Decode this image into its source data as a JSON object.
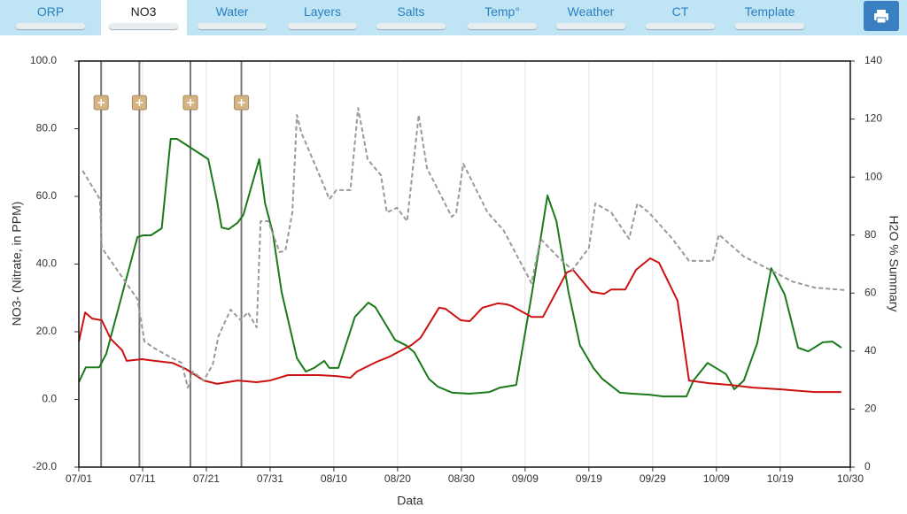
{
  "tabs": [
    "ORP",
    "NO3",
    "Water",
    "Layers",
    "Salts",
    "Temp°",
    "Weather",
    "CT",
    "Template"
  ],
  "active_tab": "NO3",
  "chart_data": {
    "type": "line",
    "x_label": "Data",
    "y_label": "NO3- (Nitrate, in PPM)",
    "y2_label": "H2O % Summary",
    "xlim": [
      0,
      121
    ],
    "xticks": [
      {
        "value": 0,
        "label": "07/01"
      },
      {
        "value": 10,
        "label": "07/11"
      },
      {
        "value": 20,
        "label": "07/21"
      },
      {
        "value": 30,
        "label": "07/31"
      },
      {
        "value": 40,
        "label": "08/10"
      },
      {
        "value": 50,
        "label": "08/20"
      },
      {
        "value": 60,
        "label": "08/30"
      },
      {
        "value": 70,
        "label": "09/09"
      },
      {
        "value": 80,
        "label": "09/19"
      },
      {
        "value": 90,
        "label": "09/29"
      },
      {
        "value": 100,
        "label": "10/09"
      },
      {
        "value": 110,
        "label": "10/19"
      },
      {
        "value": 121,
        "label": "10/30"
      }
    ],
    "ylim": [
      -20,
      100
    ],
    "yticks": [
      {
        "value": -20,
        "label": "-20.0"
      },
      {
        "value": 0,
        "label": "0.0"
      },
      {
        "value": 20,
        "label": "20.0"
      },
      {
        "value": 40,
        "label": "40.0"
      },
      {
        "value": 60,
        "label": "60.0"
      },
      {
        "value": 80,
        "label": "80.0"
      },
      {
        "value": 100,
        "label": "100.0"
      }
    ],
    "y2lim": [
      0,
      140
    ],
    "y2ticks": [
      0,
      20,
      40,
      60,
      80,
      100,
      120,
      140
    ],
    "grid": "x",
    "events": [
      3.5,
      9.5,
      17.5,
      25.5
    ],
    "series": [
      {
        "color": "#1a7a1a",
        "dash": false,
        "x": [
          0,
          1.1,
          3.2,
          4.3,
          9.2,
          10.1,
          11.3,
          13,
          14.4,
          15.4,
          20.3,
          21.7,
          22.4,
          23.5,
          24.9,
          25.8,
          28.3,
          29.2,
          30.4,
          31.8,
          34.2,
          35.6,
          36.9,
          38.5,
          39.3,
          40.7,
          43.3,
          45.4,
          46.5,
          49.6,
          51.3,
          52.6,
          54.9,
          56.3,
          57.9,
          58.6,
          61.3,
          64.4,
          66.1,
          68.6,
          71.1,
          73.5,
          74.9,
          76.8,
          78.6,
          80.7,
          82.1,
          84.9,
          86.8,
          89.4,
          91.7,
          95.3,
          96.4,
          98.6,
          101.5,
          102.8,
          104.3,
          106.4,
          108.6,
          110.7,
          112.8,
          114.4,
          116.7,
          118.2,
          119.6
        ],
        "values": [
          5.1,
          9.5,
          9.5,
          13.5,
          48,
          48.5,
          48.5,
          50.6,
          77,
          77,
          71,
          58.4,
          50.8,
          50.3,
          52.2,
          54.5,
          71,
          58,
          49.5,
          31.8,
          12.2,
          8.2,
          9.3,
          11.4,
          9.3,
          9.3,
          24.4,
          28.6,
          27.3,
          17.6,
          16,
          14,
          6.1,
          3.8,
          2.5,
          2,
          1.7,
          2.2,
          3.5,
          4.3,
          31.8,
          60.3,
          52.7,
          31.8,
          16,
          9.3,
          6.1,
          2,
          1.7,
          1.4,
          0.9,
          0.9,
          5.6,
          10.8,
          7.5,
          3,
          5.6,
          16.6,
          38.8,
          31,
          15.3,
          14.2,
          16.9,
          17.1,
          15.3
        ]
      },
      {
        "color": "#cc1111",
        "dash": false,
        "x": [
          0,
          1,
          2.1,
          3.6,
          5,
          6.8,
          7.5,
          9.9,
          11.9,
          14.7,
          16.8,
          19.6,
          21.7,
          24.9,
          27.9,
          30,
          32.8,
          37.6,
          40.4,
          42.6,
          43.6,
          46.7,
          48.8,
          52.2,
          53.6,
          56.5,
          57.5,
          59.9,
          61.3,
          63.3,
          65.7,
          67.1,
          67.9,
          71,
          72.8,
          76.5,
          77.5,
          80.4,
          82.4,
          83.5,
          85.7,
          87.4,
          89.6,
          91,
          93.9,
          95.7,
          98.8,
          102.2,
          105.7,
          109.9,
          115.4,
          119.6
        ],
        "values": [
          17.1,
          25.7,
          23.9,
          23.4,
          17.9,
          14.5,
          11.4,
          11.9,
          11.4,
          10.8,
          9,
          5.6,
          4.6,
          5.6,
          5.1,
          5.6,
          7.2,
          7.2,
          6.9,
          6.4,
          8.2,
          11.1,
          12.7,
          16.1,
          18.2,
          27.1,
          26.8,
          23.4,
          23.1,
          27.1,
          28.4,
          28.1,
          27.6,
          24.4,
          24.4,
          37.5,
          38.3,
          31.8,
          31.2,
          32.5,
          32.5,
          38.3,
          41.7,
          40.4,
          29.2,
          5.6,
          4.8,
          4.3,
          3.5,
          3,
          2.2,
          2.2
        ]
      },
      {
        "color": "#999999",
        "dash": true,
        "axis": "y2",
        "x": [
          0.6,
          3.3,
          3.6,
          9.2,
          10.3,
          11.9,
          14.7,
          16.1,
          17.1,
          17.9,
          19.6,
          21,
          21.9,
          23.8,
          25.4,
          26.5,
          27.9,
          28.5,
          29.7,
          31.5,
          32.4,
          33.5,
          34.2,
          34.9,
          37,
          39.3,
          40.4,
          42.6,
          43.8,
          45.3,
          47.4,
          48.3,
          49.9,
          51.5,
          53.3,
          54.6,
          58.5,
          59.2,
          60.3,
          64.1,
          66.6,
          71,
          72.4,
          75.1,
          77.4,
          80,
          81,
          83.5,
          86.3,
          87.6,
          89.4,
          93.1,
          95.7,
          99.4,
          100.4,
          104.3,
          107.1,
          109.2,
          111.9,
          115.4,
          120.3
        ],
        "values": [
          102.2,
          92.4,
          75.6,
          57.9,
          43.3,
          40.9,
          37.5,
          36,
          27.4,
          32.9,
          29.9,
          35.4,
          45.1,
          54.3,
          50.6,
          53.4,
          48.2,
          84.8,
          84.8,
          74.1,
          74.7,
          87.8,
          121.4,
          115.3,
          104.6,
          92.4,
          95.5,
          95.5,
          123.8,
          106.1,
          100.6,
          87.8,
          89.4,
          84.8,
          121.4,
          103.1,
          86.3,
          87.8,
          104.6,
          87.8,
          81.7,
          63.4,
          78.7,
          72.6,
          68,
          75.6,
          90.9,
          87.8,
          78.7,
          90.9,
          87.8,
          78.7,
          71.1,
          71.1,
          80.2,
          72.6,
          69.5,
          67.1,
          64,
          61.9,
          61
        ]
      }
    ]
  }
}
